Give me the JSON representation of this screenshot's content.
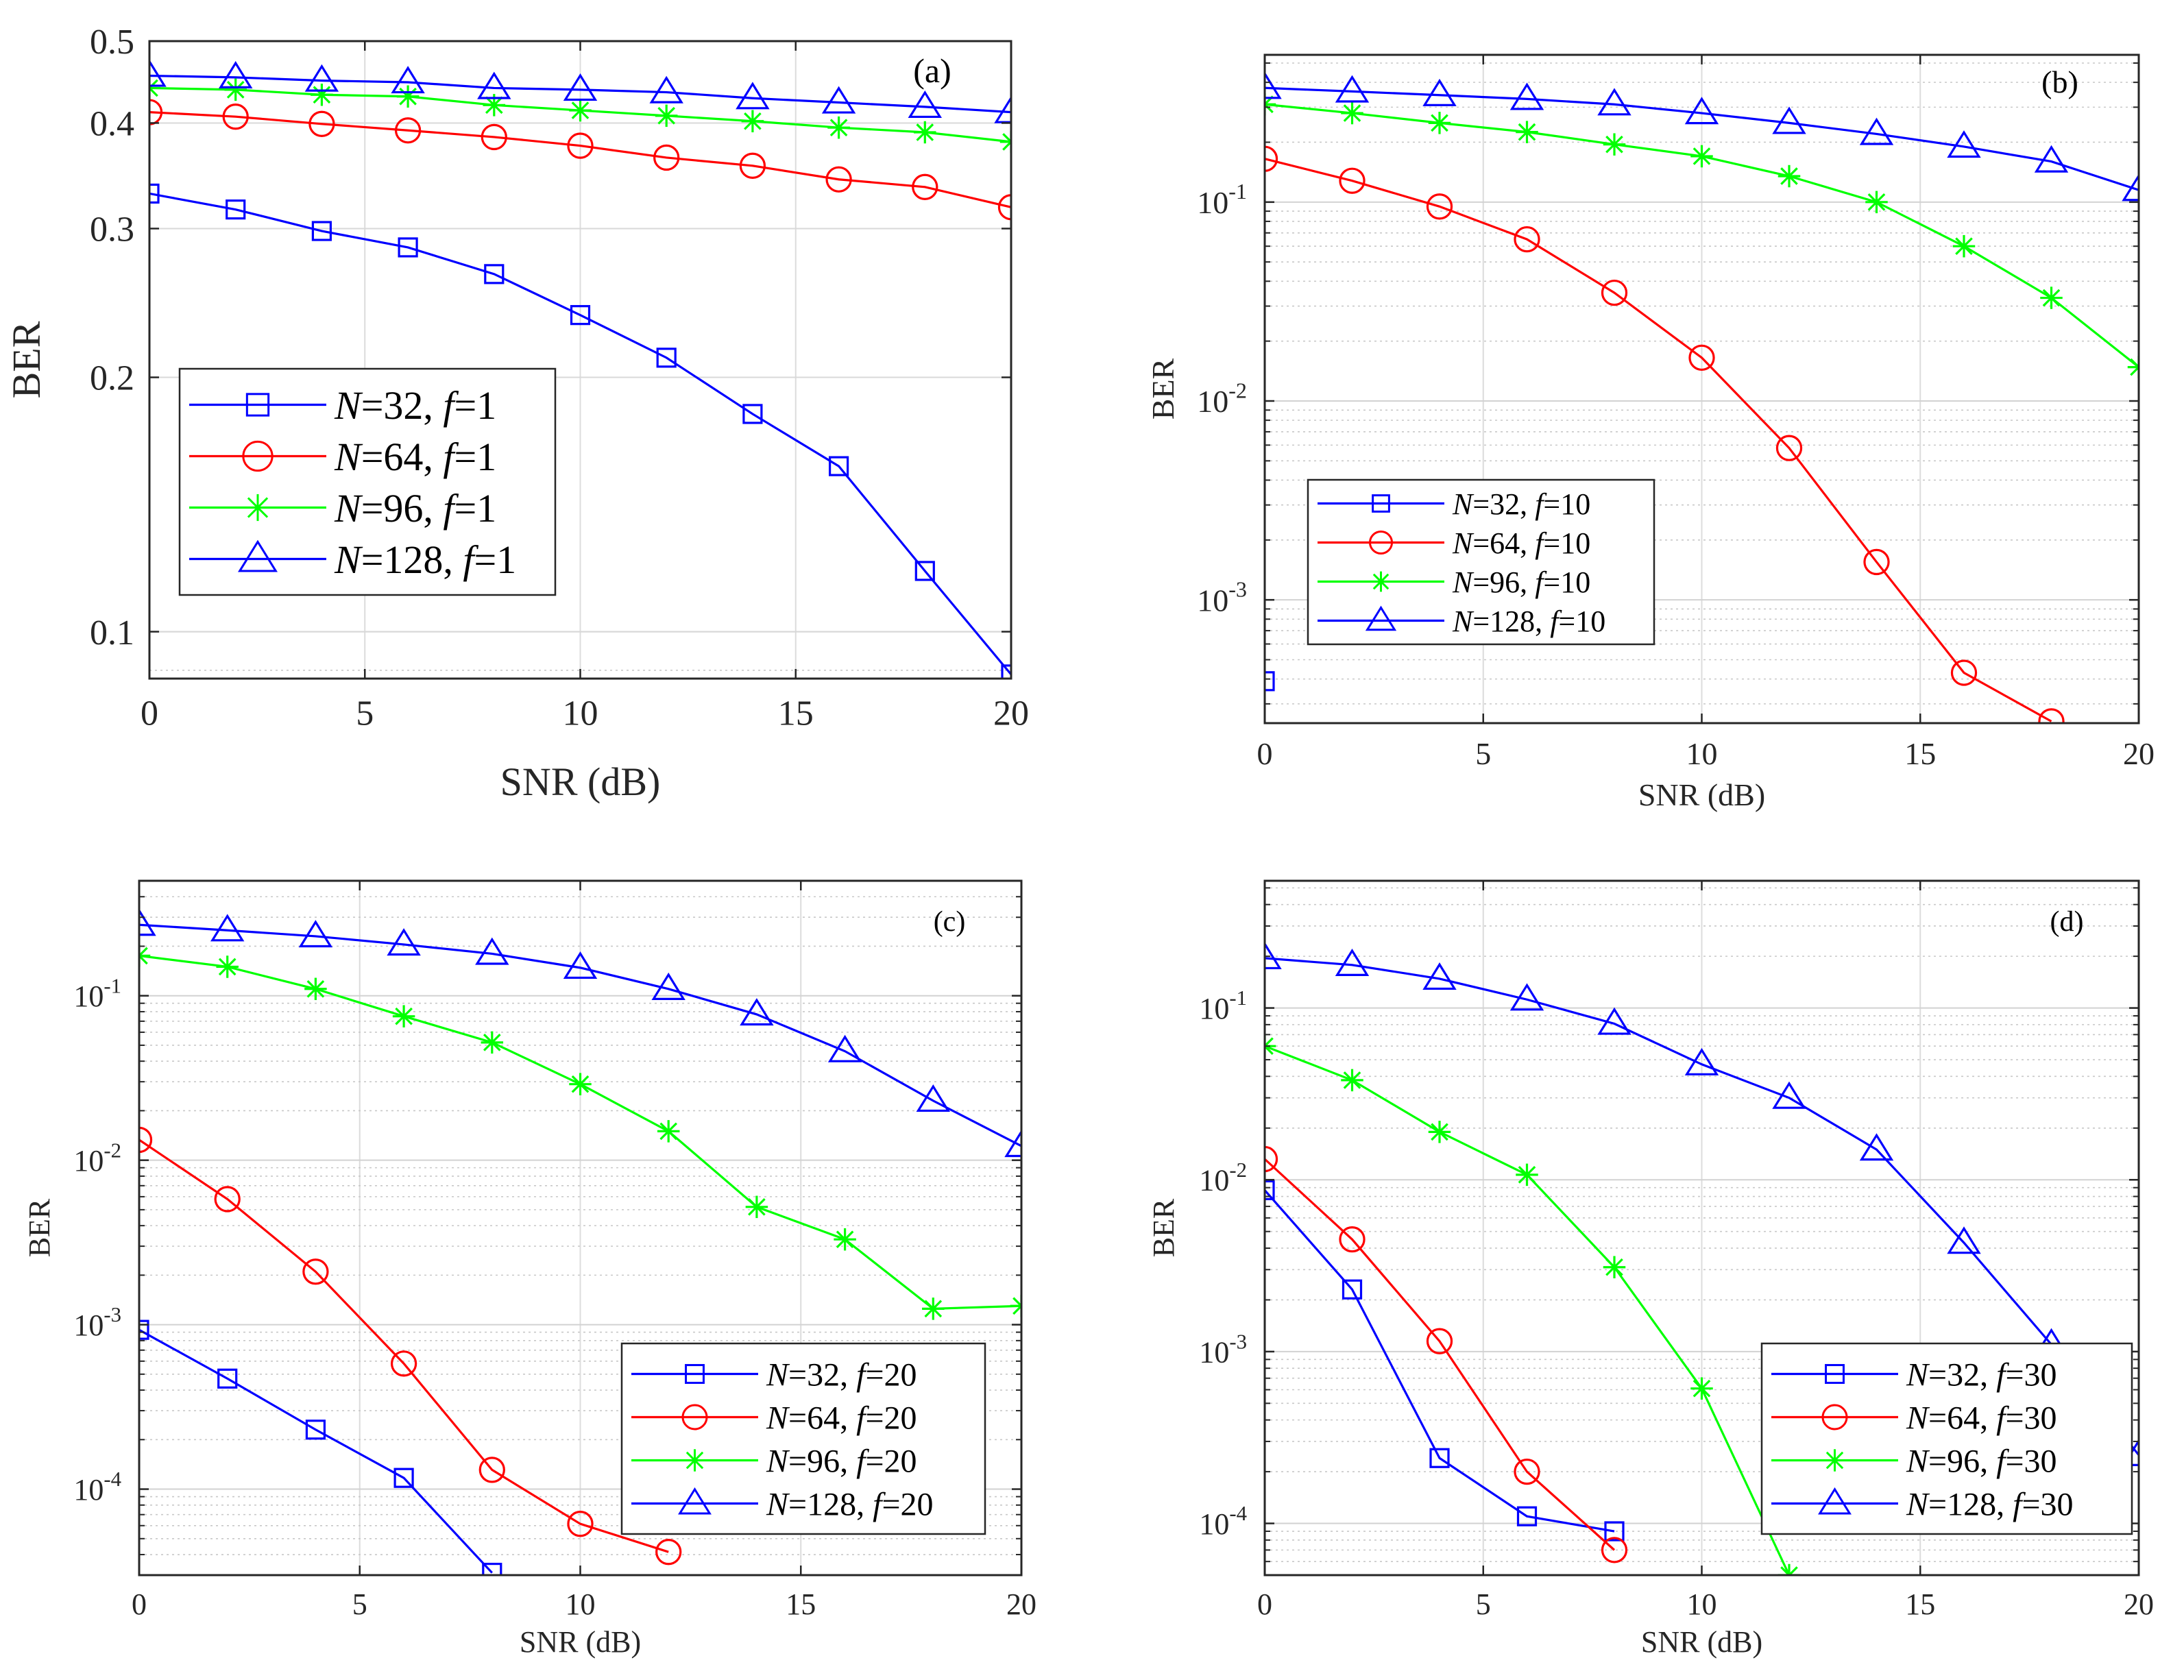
{
  "colors": {
    "blue": "#0000ff",
    "red": "#ff0000",
    "green": "#00ff00",
    "axis": "#262626"
  },
  "chart_data": [
    {
      "type": "line",
      "panel_label": "(a)",
      "xlabel": "SNR (dB)",
      "ylabel": "BER",
      "xlim": [
        0,
        20
      ],
      "ylim": [
        0.088,
        0.5
      ],
      "yscale": "log",
      "grid": true,
      "x_ticks": [
        "0",
        "5",
        "10",
        "15",
        "20"
      ],
      "y_ticks": [
        "0.1",
        "0.2",
        "0.3",
        "0.4",
        "0.5"
      ],
      "legend_position": "center-left",
      "series": [
        {
          "name_var": "N",
          "name_val": "=32, ",
          "name_var2": "f",
          "name_val2": "=1",
          "color": "#0000ff",
          "marker": "square",
          "x": [
            0,
            2,
            4,
            6,
            8,
            10,
            12,
            14,
            16,
            18,
            20
          ],
          "y": [
            0.33,
            0.316,
            0.298,
            0.285,
            0.265,
            0.237,
            0.211,
            0.181,
            0.157,
            0.118,
            0.089
          ]
        },
        {
          "name_var": "N",
          "name_val": "=64, ",
          "name_var2": "f",
          "name_val2": "=1",
          "color": "#ff0000",
          "marker": "circle",
          "x": [
            0,
            2,
            4,
            6,
            8,
            10,
            12,
            14,
            16,
            18,
            20
          ],
          "y": [
            0.412,
            0.407,
            0.399,
            0.392,
            0.385,
            0.376,
            0.364,
            0.356,
            0.343,
            0.336,
            0.318
          ]
        },
        {
          "name_var": "N",
          "name_val": "=96, ",
          "name_var2": "f",
          "name_val2": "=1",
          "color": "#00ff00",
          "marker": "asterisk",
          "x": [
            0,
            2,
            4,
            6,
            8,
            10,
            12,
            14,
            16,
            18,
            20
          ],
          "y": [
            0.44,
            0.438,
            0.432,
            0.43,
            0.42,
            0.414,
            0.408,
            0.402,
            0.395,
            0.39,
            0.38
          ]
        },
        {
          "name_var": "N",
          "name_val": "=128, ",
          "name_var2": "f",
          "name_val2": "=1",
          "color": "#0000ff",
          "marker": "triangle",
          "x": [
            0,
            2,
            4,
            6,
            8,
            10,
            12,
            14,
            16,
            18,
            20
          ],
          "y": [
            0.455,
            0.453,
            0.449,
            0.447,
            0.44,
            0.438,
            0.435,
            0.428,
            0.423,
            0.418,
            0.412
          ]
        }
      ]
    },
    {
      "type": "line",
      "panel_label": "(b)",
      "xlabel": "SNR (dB)",
      "ylabel": "BER",
      "xlim": [
        0,
        20
      ],
      "ylim": [
        0.00024,
        0.55
      ],
      "yscale": "log",
      "grid": true,
      "x_ticks": [
        "0",
        "5",
        "10",
        "15",
        "20"
      ],
      "y_ticks": [
        {
          "base": "10",
          "exp": "-3",
          "value": 0.001
        },
        {
          "base": "10",
          "exp": "-2",
          "value": 0.01
        },
        {
          "base": "10",
          "exp": "-1",
          "value": 0.1
        }
      ],
      "legend_position": "bottom-left",
      "series": [
        {
          "name_var": "N",
          "name_val": "=32, ",
          "name_var2": "f",
          "name_val2": "=10",
          "color": "#0000ff",
          "marker": "square",
          "x": [
            0
          ],
          "y": [
            0.00039
          ]
        },
        {
          "name_var": "N",
          "name_val": "=64, ",
          "name_var2": "f",
          "name_val2": "=10",
          "color": "#ff0000",
          "marker": "circle",
          "x": [
            0,
            2,
            4,
            6,
            8,
            10,
            12,
            14,
            16,
            18
          ],
          "y": [
            0.165,
            0.128,
            0.095,
            0.065,
            0.035,
            0.0165,
            0.0058,
            0.00155,
            0.00043,
            0.000245
          ]
        },
        {
          "name_var": "N",
          "name_val": "=96, ",
          "name_var2": "f",
          "name_val2": "=10",
          "color": "#00ff00",
          "marker": "asterisk",
          "x": [
            0,
            2,
            4,
            6,
            8,
            10,
            12,
            14,
            16,
            18,
            20
          ],
          "y": [
            0.31,
            0.28,
            0.25,
            0.225,
            0.195,
            0.17,
            0.135,
            0.1,
            0.06,
            0.033,
            0.0148
          ]
        },
        {
          "name_var": "N",
          "name_val": "=128, ",
          "name_var2": "f",
          "name_val2": "=10",
          "color": "#0000ff",
          "marker": "triangle",
          "x": [
            0,
            2,
            4,
            6,
            8,
            10,
            12,
            14,
            16,
            18,
            20
          ],
          "y": [
            0.375,
            0.36,
            0.345,
            0.33,
            0.31,
            0.28,
            0.25,
            0.22,
            0.19,
            0.16,
            0.115
          ]
        }
      ]
    },
    {
      "type": "line",
      "panel_label": "(c)",
      "xlabel": "SNR (dB)",
      "ylabel": "BER",
      "xlim": [
        0,
        20
      ],
      "ylim": [
        3e-05,
        0.5
      ],
      "yscale": "log",
      "grid": true,
      "x_ticks": [
        "0",
        "5",
        "10",
        "15",
        "20"
      ],
      "y_ticks": [
        {
          "base": "10",
          "exp": "-4",
          "value": 0.0001
        },
        {
          "base": "10",
          "exp": "-3",
          "value": 0.001
        },
        {
          "base": "10",
          "exp": "-2",
          "value": 0.01
        },
        {
          "base": "10",
          "exp": "-1",
          "value": 0.1
        }
      ],
      "legend_position": "bottom-right",
      "series": [
        {
          "name_var": "N",
          "name_val": "=32, ",
          "name_var2": "f",
          "name_val2": "=20",
          "color": "#0000ff",
          "marker": "square",
          "x": [
            0,
            2,
            4,
            6,
            8
          ],
          "y": [
            0.00093,
            0.00047,
            0.00023,
            0.000117,
            3.1e-05
          ]
        },
        {
          "name_var": "N",
          "name_val": "=64, ",
          "name_var2": "f",
          "name_val2": "=20",
          "color": "#ff0000",
          "marker": "circle",
          "x": [
            0,
            2,
            4,
            6,
            8,
            10,
            12
          ],
          "y": [
            0.0133,
            0.0058,
            0.0021,
            0.00058,
            0.000131,
            6.15e-05,
            4.15e-05
          ]
        },
        {
          "name_var": "N",
          "name_val": "=96, ",
          "name_var2": "f",
          "name_val2": "=20",
          "color": "#00ff00",
          "marker": "asterisk",
          "x": [
            0,
            2,
            4,
            6,
            8,
            10,
            12,
            14,
            16,
            18,
            20
          ],
          "y": [
            0.175,
            0.15,
            0.11,
            0.075,
            0.052,
            0.029,
            0.015,
            0.0052,
            0.0033,
            0.00125,
            0.0013
          ]
        },
        {
          "name_var": "N",
          "name_val": "=128, ",
          "name_var2": "f",
          "name_val2": "=20",
          "color": "#0000ff",
          "marker": "triangle",
          "x": [
            0,
            2,
            4,
            6,
            8,
            10,
            12,
            14,
            16,
            18,
            20
          ],
          "y": [
            0.27,
            0.25,
            0.23,
            0.205,
            0.18,
            0.148,
            0.11,
            0.077,
            0.046,
            0.023,
            0.0122
          ]
        }
      ]
    },
    {
      "type": "line",
      "panel_label": "(d)",
      "xlabel": "SNR (dB)",
      "ylabel": "BER",
      "xlim": [
        0,
        20
      ],
      "ylim": [
        5e-05,
        0.55
      ],
      "yscale": "log",
      "grid": true,
      "x_ticks": [
        "0",
        "5",
        "10",
        "15",
        "20"
      ],
      "y_ticks": [
        {
          "base": "10",
          "exp": "-4",
          "value": 0.0001
        },
        {
          "base": "10",
          "exp": "-3",
          "value": 0.001
        },
        {
          "base": "10",
          "exp": "-2",
          "value": 0.01
        },
        {
          "base": "10",
          "exp": "-1",
          "value": 0.1
        }
      ],
      "legend_position": "bottom-right",
      "series": [
        {
          "name_var": "N",
          "name_val": "=32, ",
          "name_var2": "f",
          "name_val2": "=30",
          "color": "#0000ff",
          "marker": "square",
          "x": [
            0,
            2,
            4,
            6,
            8
          ],
          "y": [
            0.0087,
            0.0023,
            0.00024,
            0.00011,
            9e-05
          ]
        },
        {
          "name_var": "N",
          "name_val": "=64, ",
          "name_var2": "f",
          "name_val2": "=30",
          "color": "#ff0000",
          "marker": "circle",
          "x": [
            0,
            2,
            4,
            6,
            8
          ],
          "y": [
            0.0132,
            0.0045,
            0.00115,
            0.0002,
            7e-05
          ]
        },
        {
          "name_var": "N",
          "name_val": "=96, ",
          "name_var2": "f",
          "name_val2": "=30",
          "color": "#00ff00",
          "marker": "asterisk",
          "x": [
            0,
            2,
            4,
            6,
            8,
            10,
            12
          ],
          "y": [
            0.06,
            0.038,
            0.019,
            0.0107,
            0.0031,
            0.00061,
            5e-05
          ]
        },
        {
          "name_var": "N",
          "name_val": "=128, ",
          "name_var2": "f",
          "name_val2": "=30",
          "color": "#0000ff",
          "marker": "triangle",
          "x": [
            0,
            2,
            4,
            6,
            8,
            10,
            12,
            14,
            16,
            18,
            20
          ],
          "y": [
            0.195,
            0.178,
            0.148,
            0.112,
            0.081,
            0.047,
            0.03,
            0.015,
            0.0043,
            0.0011,
            0.00025
          ]
        }
      ]
    }
  ]
}
